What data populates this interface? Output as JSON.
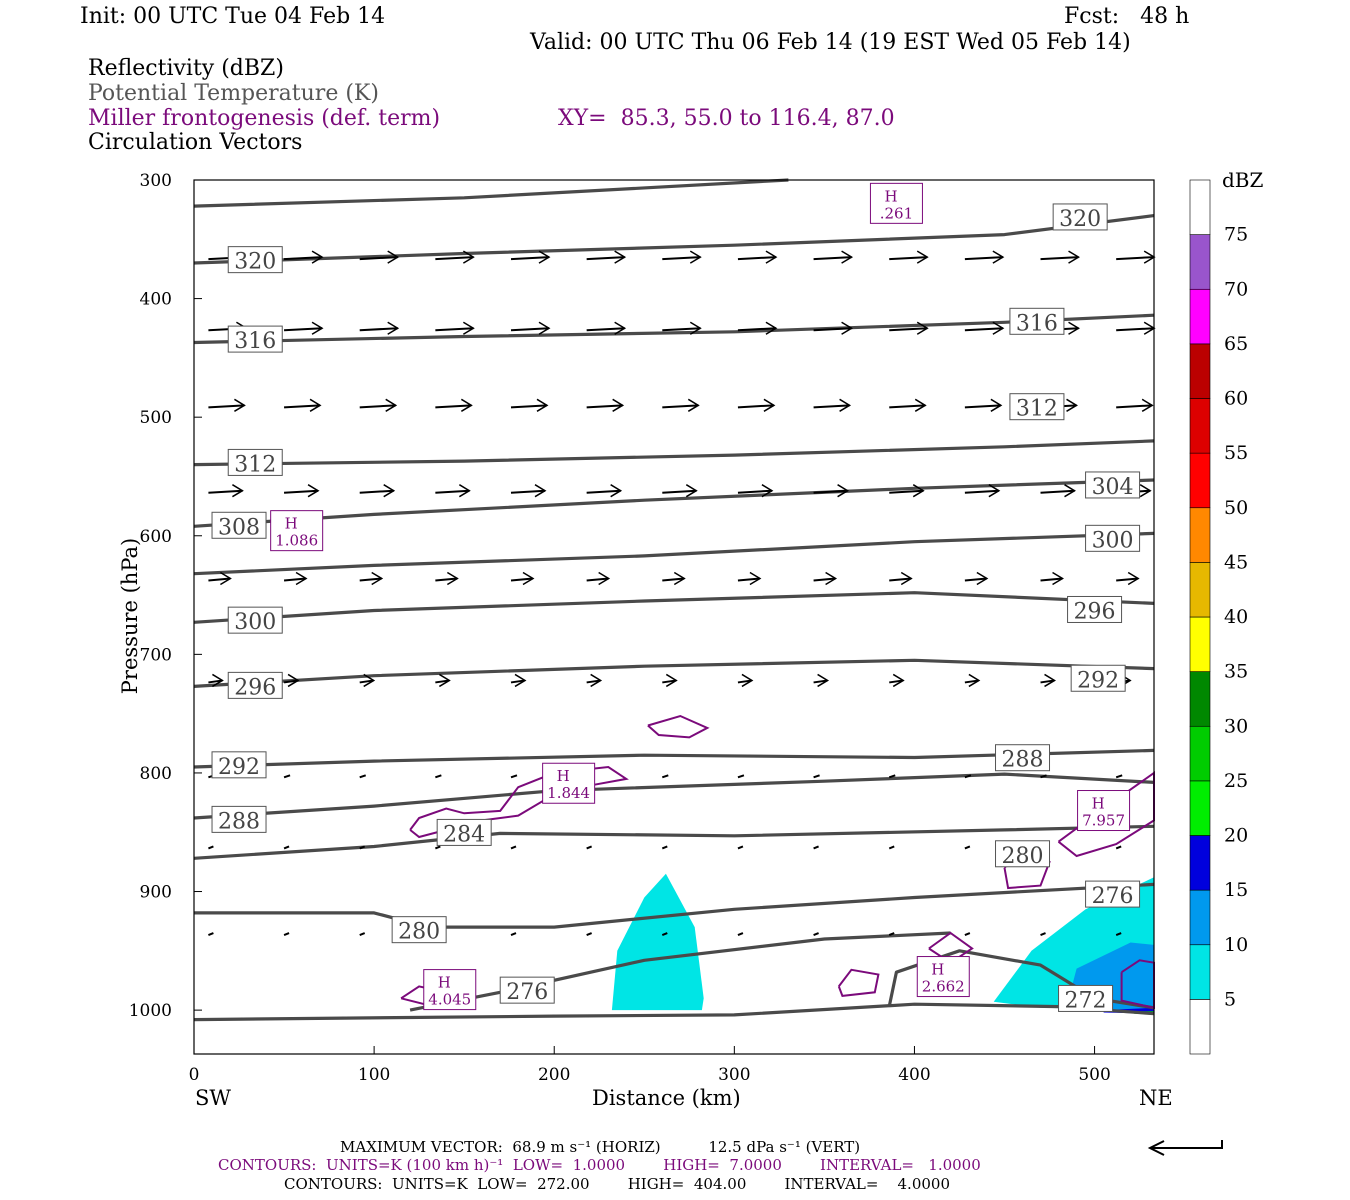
{
  "header": {
    "init": "Init: 00 UTC Tue 04 Feb 14",
    "fcst": "Fcst:   48 h",
    "valid": "Valid: 00 UTC Thu 06 Feb 14 (19 EST Wed 05 Feb 14)",
    "fields": [
      {
        "text": "Reflectivity (dBZ)",
        "color": "#000000"
      },
      {
        "text": "Potential Temperature (K)",
        "color": "#555555"
      },
      {
        "text": "Miller frontogenesis (def. term)",
        "color": "#7b0a7b"
      },
      {
        "text": "Circulation Vectors",
        "color": "#000000"
      }
    ],
    "xy": "XY=  85.3, 55.0 to 116.4, 87.0"
  },
  "chart_data": {
    "type": "cross-section",
    "xlabel": "Distance (km)",
    "ylabel": "Pressure (hPa)",
    "xlim": [
      0,
      533
    ],
    "ylim": [
      1037,
      300
    ],
    "xticks": [
      0,
      100,
      200,
      300,
      400,
      500
    ],
    "yticks": [
      300,
      400,
      500,
      600,
      700,
      800,
      900,
      1000
    ],
    "x_end_labels": {
      "left": "SW",
      "right": "NE"
    },
    "colorbar": {
      "title": "dBZ",
      "levels": [
        5,
        10,
        15,
        20,
        25,
        30,
        35,
        40,
        45,
        50,
        55,
        60,
        65,
        70,
        75
      ],
      "colors": [
        "#ffffff",
        "#00e5e5",
        "#0099ee",
        "#0000dd",
        "#00ee00",
        "#00cc00",
        "#008800",
        "#ffff00",
        "#e6b800",
        "#ff8800",
        "#ff0000",
        "#dd0000",
        "#bb0000",
        "#ff00ff",
        "#9955cc",
        "#ffffff"
      ]
    },
    "theta_labels": [
      {
        "value": "320",
        "x": 34,
        "p": 368
      },
      {
        "value": "320",
        "x": 492,
        "p": 332
      },
      {
        "value": "316",
        "x": 34,
        "p": 435
      },
      {
        "value": "316",
        "x": 468,
        "p": 420
      },
      {
        "value": "312",
        "x": 34,
        "p": 539
      },
      {
        "value": "312",
        "x": 468,
        "p": 492
      },
      {
        "value": "308",
        "x": 25,
        "p": 592
      },
      {
        "value": "304",
        "x": 510,
        "p": 558
      },
      {
        "value": "300",
        "x": 510,
        "p": 603
      },
      {
        "value": "300",
        "x": 34,
        "p": 672
      },
      {
        "value": "296",
        "x": 500,
        "p": 663
      },
      {
        "value": "296",
        "x": 34,
        "p": 727
      },
      {
        "value": "292",
        "x": 502,
        "p": 721
      },
      {
        "value": "292",
        "x": 25,
        "p": 794
      },
      {
        "value": "288",
        "x": 460,
        "p": 788
      },
      {
        "value": "288",
        "x": 25,
        "p": 840
      },
      {
        "value": "284",
        "x": 150,
        "p": 851
      },
      {
        "value": "280",
        "x": 460,
        "p": 869
      },
      {
        "value": "280",
        "x": 125,
        "p": 933
      },
      {
        "value": "276",
        "x": 510,
        "p": 903
      },
      {
        "value": "276",
        "x": 185,
        "p": 984
      },
      {
        "value": "272",
        "x": 495,
        "p": 991
      }
    ],
    "frontogenesis_maxima": [
      {
        "label": "H",
        "value": ".261",
        "x": 390,
        "p": 318
      },
      {
        "label": "H",
        "value": "1.086",
        "x": 57,
        "p": 594
      },
      {
        "label": "H",
        "value": "1.844",
        "x": 208,
        "p": 807
      },
      {
        "label": "H",
        "value": "7.957",
        "x": 505,
        "p": 830
      },
      {
        "label": "H",
        "value": "2.662",
        "x": 416,
        "p": 970
      },
      {
        "label": "H",
        "value": "4.045",
        "x": 142,
        "p": 981
      }
    ],
    "footer": {
      "max_vector": "MAXIMUM VECTOR:  68.9 m s⁻¹ (HORIZ)          12.5 dPa s⁻¹ (VERT)",
      "contours_purple": "CONTOURS:  UNITS=K (100 km h)⁻¹  LOW=  1.0000        HIGH=  7.0000        INTERVAL=   1.0000",
      "contours_black": "CONTOURS:  UNITS=K  LOW=  272.00        HIGH=  404.00        INTERVAL=    4.0000"
    }
  }
}
